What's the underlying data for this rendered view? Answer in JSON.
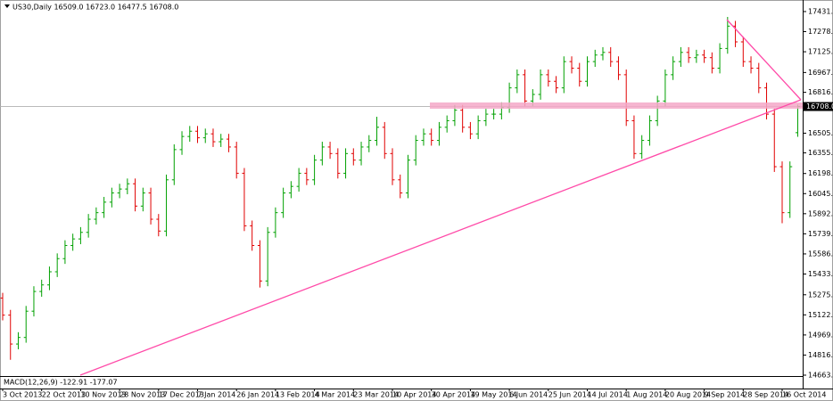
{
  "chart_data": {
    "type": "ohlc",
    "title": "US30,Daily  16509.0 16723.0 16477.5 16708.0",
    "indicator_label": "MACD(12,26,9) -122.91 -177.07",
    "up_color": "#00a000",
    "down_color": "#e00000",
    "grid": false,
    "ylim": [
      14663,
      17485
    ],
    "yticks": [
      {
        "value": 17431,
        "label": "17431.0"
      },
      {
        "value": 17278,
        "label": "17278.0"
      },
      {
        "value": 17125,
        "label": "17125.0"
      },
      {
        "value": 16967,
        "label": "16967.0"
      },
      {
        "value": 16816,
        "label": "16816.0"
      },
      {
        "value": 16505,
        "label": "16505.0"
      },
      {
        "value": 16355,
        "label": "16355.0"
      },
      {
        "value": 16198,
        "label": "16198.0"
      },
      {
        "value": 16045,
        "label": "16045.0"
      },
      {
        "value": 15892,
        "label": "15892.0"
      },
      {
        "value": 15739,
        "label": "15739.0"
      },
      {
        "value": 15586,
        "label": "15586.0"
      },
      {
        "value": 15433,
        "label": "15433.0"
      },
      {
        "value": 15275,
        "label": "15275.0"
      },
      {
        "value": 15122,
        "label": "15122.0"
      },
      {
        "value": 14969,
        "label": "14969.0"
      },
      {
        "value": 14816,
        "label": "14816.0"
      },
      {
        "value": 14663,
        "label": "14663.0"
      }
    ],
    "price_label": {
      "value": 16708,
      "label": "16708.0"
    },
    "x_labels": [
      "3 Oct 2013",
      "22 Oct 2013",
      "10 Nov 2013",
      "28 Nov 2013",
      "17 Dec 2013",
      "7 Jan 2014",
      "26 Jan 2014",
      "13 Feb 2014",
      "4 Mar 2014",
      "23 Mar 2014",
      "10 Apr 2014",
      "30 Apr 2014",
      "19 May 2014",
      "6 Jun 2014",
      "25 Jun 2014",
      "14 Jul 2014",
      "1 Aug 2014",
      "20 Aug 2014",
      "9 Sep 2014",
      "28 Sep 2014",
      "16 Oct 2014"
    ],
    "open": [
      15250,
      15120,
      14900,
      14950,
      15150,
      15300,
      15350,
      15450,
      15550,
      15650,
      15700,
      15750,
      15850,
      15900,
      15980,
      16050,
      16080,
      16120,
      15950,
      16050,
      15850,
      15760,
      16150,
      16380,
      16480,
      16520,
      16470,
      16500,
      16440,
      16460,
      16400,
      16200,
      15800,
      15650,
      15380,
      15750,
      15900,
      16050,
      16100,
      16200,
      16150,
      16300,
      16400,
      16350,
      16200,
      16350,
      16300,
      16400,
      16450,
      16550,
      16350,
      16150,
      16050,
      16300,
      16450,
      16500,
      16450,
      16550,
      16600,
      16680,
      16550,
      16500,
      16600,
      16650,
      16650,
      16700,
      16850,
      16950,
      16750,
      16800,
      16950,
      16900,
      16850,
      17050,
      17000,
      16900,
      17050,
      17100,
      17120,
      17050,
      16950,
      16600,
      16350,
      16450,
      16600,
      16750,
      16950,
      17050,
      17120,
      17080,
      17100,
      17080,
      17000,
      17150,
      17320,
      17200,
      17050,
      17000,
      16850,
      16650,
      16250,
      15900,
      16509
    ],
    "high": [
      15290,
      15160,
      14990,
      15190,
      15340,
      15390,
      15490,
      15590,
      15690,
      15740,
      15790,
      15890,
      15940,
      16020,
      16090,
      16120,
      16160,
      16160,
      16090,
      16090,
      15890,
      16190,
      16420,
      16520,
      16560,
      16560,
      16540,
      16540,
      16500,
      16500,
      16440,
      16240,
      15840,
      15690,
      15790,
      15940,
      16090,
      16140,
      16240,
      16240,
      16340,
      16440,
      16440,
      16390,
      16390,
      16390,
      16440,
      16490,
      16630,
      16590,
      16390,
      16190,
      16340,
      16490,
      16540,
      16540,
      16590,
      16640,
      16720,
      16720,
      16590,
      16640,
      16690,
      16690,
      16740,
      16890,
      16990,
      16990,
      16840,
      16990,
      16990,
      16940,
      17090,
      17090,
      17040,
      17090,
      17140,
      17160,
      17160,
      17090,
      16990,
      16640,
      16490,
      16640,
      16790,
      16990,
      17090,
      17160,
      17160,
      17140,
      17140,
      17120,
      17190,
      17390,
      17360,
      17240,
      17090,
      17040,
      16890,
      16690,
      16290,
      16290,
      16723
    ],
    "low": [
      15080,
      14780,
      14860,
      14910,
      15110,
      15260,
      15310,
      15410,
      15510,
      15610,
      15660,
      15710,
      15810,
      15860,
      15940,
      16010,
      16040,
      15910,
      15910,
      15810,
      15720,
      15720,
      16110,
      16340,
      16440,
      16430,
      16430,
      16400,
      16400,
      16360,
      16160,
      15760,
      15610,
      15330,
      15340,
      15710,
      15860,
      16010,
      16060,
      16110,
      16110,
      16260,
      16310,
      16160,
      16160,
      16260,
      16260,
      16360,
      16410,
      16310,
      16110,
      16010,
      16010,
      16260,
      16410,
      16410,
      16410,
      16510,
      16560,
      16510,
      16460,
      16460,
      16560,
      16610,
      16610,
      16660,
      16810,
      16710,
      16710,
      16760,
      16860,
      16810,
      16810,
      16960,
      16860,
      16860,
      17010,
      17060,
      17010,
      16910,
      16560,
      16310,
      16310,
      16410,
      16560,
      16710,
      16910,
      17010,
      17040,
      17040,
      17040,
      16960,
      16960,
      17110,
      17160,
      17010,
      16960,
      16810,
      16610,
      16210,
      15820,
      15860,
      16477.5
    ],
    "close": [
      15120,
      14900,
      14950,
      15150,
      15300,
      15350,
      15450,
      15550,
      15650,
      15700,
      15750,
      15850,
      15900,
      15980,
      16050,
      16080,
      16120,
      15950,
      16050,
      15850,
      15760,
      16150,
      16380,
      16480,
      16520,
      16470,
      16500,
      16440,
      16460,
      16400,
      16200,
      15800,
      15650,
      15380,
      15750,
      15900,
      16050,
      16100,
      16200,
      16150,
      16300,
      16400,
      16350,
      16200,
      16350,
      16300,
      16400,
      16450,
      16550,
      16350,
      16150,
      16050,
      16300,
      16450,
      16500,
      16450,
      16550,
      16600,
      16680,
      16550,
      16500,
      16600,
      16650,
      16650,
      16700,
      16850,
      16950,
      16750,
      16800,
      16950,
      16900,
      16850,
      17050,
      17000,
      16900,
      17050,
      17100,
      17120,
      17050,
      16950,
      16600,
      16350,
      16450,
      16600,
      16750,
      16950,
      17050,
      17120,
      17080,
      17100,
      17080,
      17000,
      17150,
      17320,
      17200,
      17050,
      17000,
      16850,
      16650,
      16250,
      15900,
      16250,
      16708
    ]
  }
}
